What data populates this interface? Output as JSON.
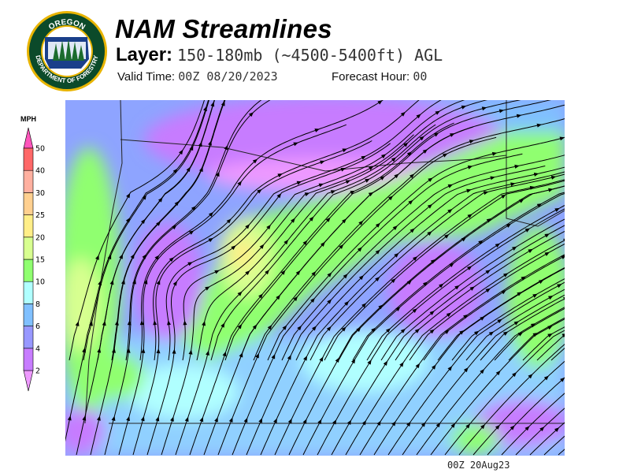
{
  "header": {
    "title": "NAM Streamlines",
    "layer_label": "Layer:",
    "layer_value": "150-180mb (~4500-5400ft) AGL",
    "valid_time_label": "Valid Time:",
    "valid_time_value": "00Z 08/20/2023",
    "forecast_hour_label": "Forecast Hour:",
    "forecast_hour_value": "00"
  },
  "logo": {
    "text_top": "OREGON",
    "text_bottom": "DEPARTMENT OF FORESTRY",
    "colors": {
      "ring": "#0b4a2a",
      "rim": "#e8b400"
    }
  },
  "legend": {
    "unit": "MPH",
    "bins": [
      {
        "label": "2",
        "color": "#c77cff"
      },
      {
        "label": "4",
        "color": "#9898ff"
      },
      {
        "label": "6",
        "color": "#80c0ff"
      },
      {
        "label": "8",
        "color": "#b0ffff"
      },
      {
        "label": "10",
        "color": "#90ff70"
      },
      {
        "label": "15",
        "color": "#d8ff90"
      },
      {
        "label": "20",
        "color": "#ffee88"
      },
      {
        "label": "25",
        "color": "#ffd090"
      },
      {
        "label": "30",
        "color": "#ffb0a0"
      },
      {
        "label": "40",
        "color": "#ff6868"
      },
      {
        "label": "50",
        "color": null
      }
    ],
    "under_color": "#ee99ff",
    "over_color": "#ff55bb"
  },
  "footer": {
    "timestamp": "00Z 20Aug23"
  }
}
